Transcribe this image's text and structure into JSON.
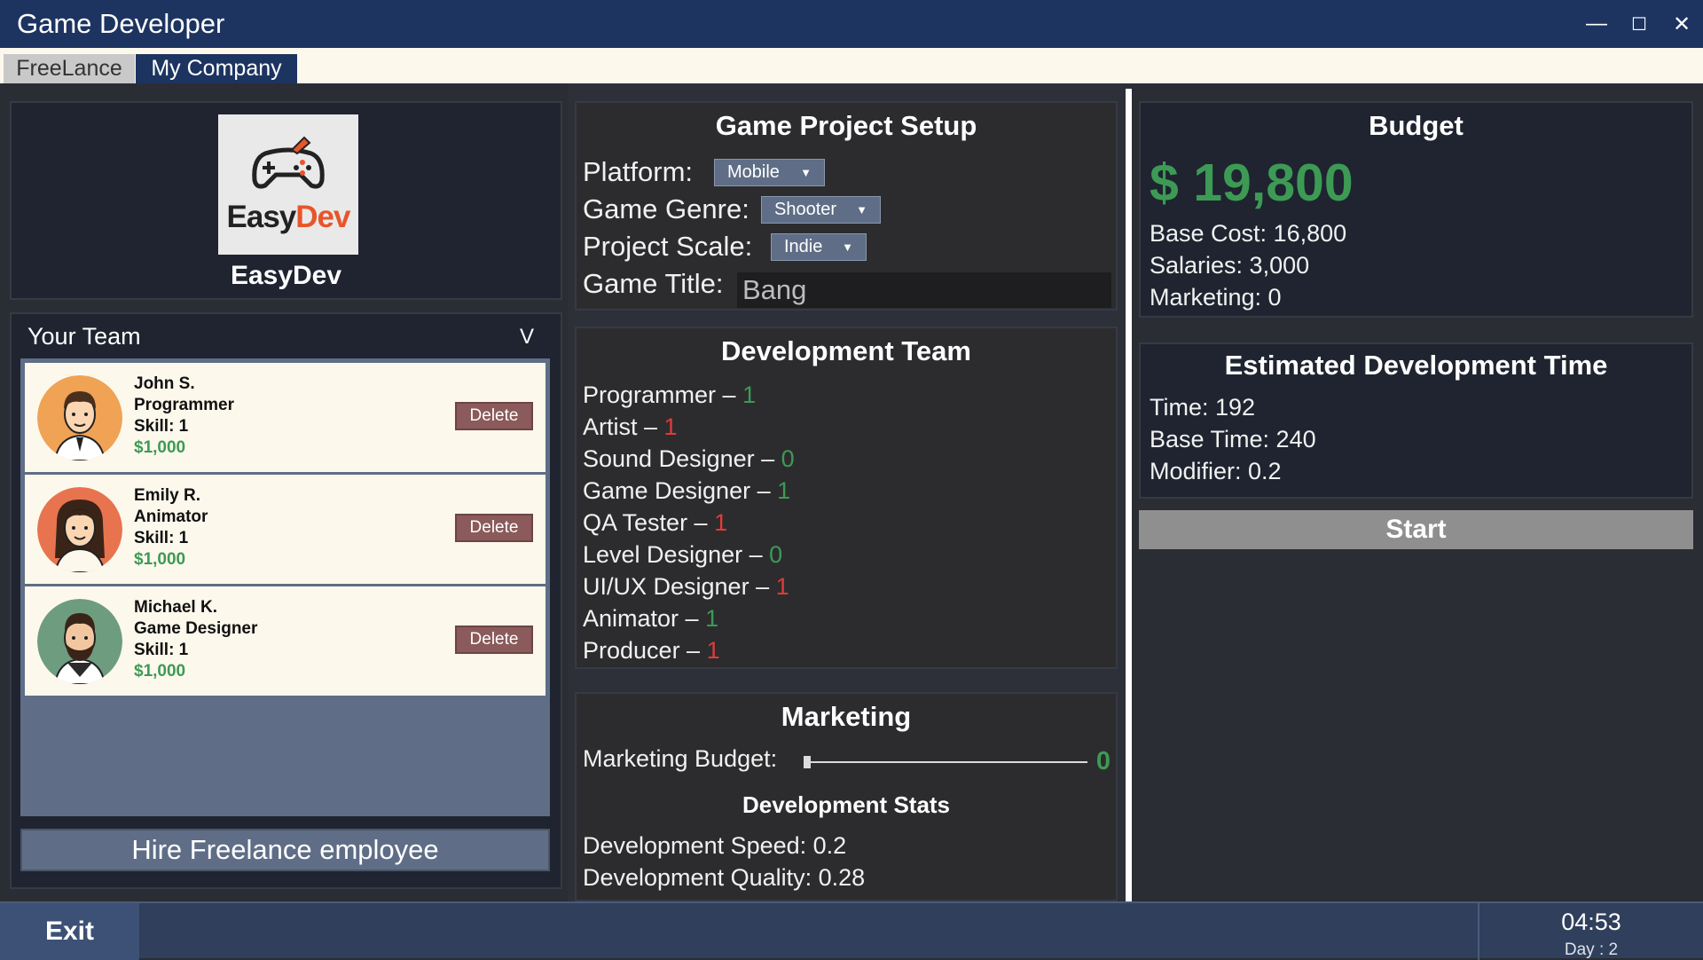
{
  "window": {
    "title": "Game Developer",
    "minimize": "—",
    "maximize": "☐",
    "close": "✕"
  },
  "tabs": [
    {
      "label": "FreeLance"
    },
    {
      "label": "My Company"
    }
  ],
  "company": {
    "logo_word_1": "Easy",
    "logo_word_2": "Dev",
    "name": "EasyDev"
  },
  "team": {
    "header": "Your Team",
    "toggle": "V",
    "members": [
      {
        "name": "John S.",
        "role": "Programmer",
        "skill": "Skill: 1",
        "salary": "$1,000",
        "delete_label": "Delete"
      },
      {
        "name": "Emily R.",
        "role": "Animator",
        "skill": "Skill: 1",
        "salary": "$1,000",
        "delete_label": "Delete"
      },
      {
        "name": "Michael K.",
        "role": "Game Designer",
        "skill": "Skill: 1",
        "salary": "$1,000",
        "delete_label": "Delete"
      }
    ],
    "hire_label": "Hire Freelance employee"
  },
  "setup": {
    "title": "Game Project Setup",
    "platform_label": "Platform:",
    "platform_value": "Mobile",
    "genre_label": "Game Genre:",
    "genre_value": "Shooter",
    "scale_label": "Project Scale:",
    "scale_value": "Indie",
    "title_label": "Game Title:",
    "title_value": "Bang"
  },
  "dev_team": {
    "title": "Development Team",
    "roles": [
      {
        "label": "Programmer –",
        "count": "1",
        "status": "green"
      },
      {
        "label": "Artist –",
        "count": "1",
        "status": "red"
      },
      {
        "label": "Sound Designer –",
        "count": "0",
        "status": "green"
      },
      {
        "label": "Game Designer –",
        "count": "1",
        "status": "green"
      },
      {
        "label": "QA Tester –",
        "count": "1",
        "status": "red"
      },
      {
        "label": "Level Designer –",
        "count": "0",
        "status": "green"
      },
      {
        "label": "UI/UX Designer –",
        "count": "1",
        "status": "red"
      },
      {
        "label": "Animator –",
        "count": "1",
        "status": "green"
      },
      {
        "label": "Producer –",
        "count": "1",
        "status": "red"
      }
    ]
  },
  "marketing": {
    "title": "Marketing",
    "budget_label": "Marketing Budget:",
    "budget_value": "0",
    "slider_fraction": 0
  },
  "dev_stats": {
    "title": "Development Stats",
    "speed": "Development Speed: 0.2",
    "quality": "Development Quality: 0.28"
  },
  "budget": {
    "title": "Budget",
    "amount": "$ 19,800",
    "base_cost": "Base Cost: 16,800",
    "salaries": "Salaries: 3,000",
    "marketing": "Marketing: 0"
  },
  "estimate": {
    "title": "Estimated Development Time",
    "time": "Time: 192",
    "base_time": "Base Time: 240",
    "modifier": "Modifier: 0.2"
  },
  "start_label": "Start",
  "footer": {
    "exit_label": "Exit",
    "clock": "04:53",
    "day": "Day : 2"
  },
  "colors": {
    "accent_green": "#3d9a55",
    "status_red": "#e03b3b",
    "titlebar": "#1d3461"
  }
}
